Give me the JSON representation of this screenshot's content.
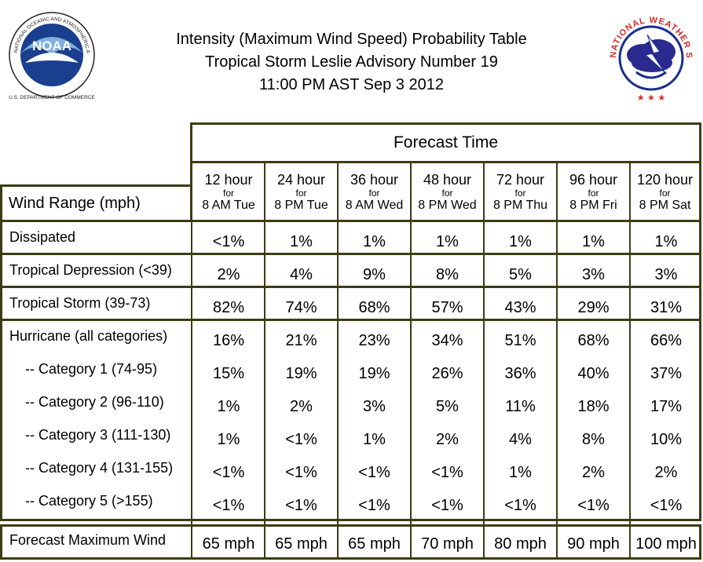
{
  "header": {
    "title_line1": "Intensity (Maximum Wind Speed) Probability Table",
    "title_line2": "Tropical Storm Leslie Advisory Number 19",
    "title_line3": "11:00 PM AST Sep 3 2012"
  },
  "logos": {
    "noaa_text": "NOAA",
    "noaa_ring_text": "NATIONAL OCEANIC AND ATMOSPHERIC ADMINISTRATION U.S. DEPARTMENT OF COMMERCE",
    "nws_ring_text": "NATIONAL WEATHER SERVICE"
  },
  "table": {
    "forecast_time_label": "Forecast Time",
    "wind_range_label": "Wind Range (mph)",
    "columns": [
      {
        "hours": "12 hour",
        "for": "for",
        "time": "8 AM Tue"
      },
      {
        "hours": "24 hour",
        "for": "for",
        "time": "8 PM Tue"
      },
      {
        "hours": "36 hour",
        "for": "for",
        "time": "8 AM Wed"
      },
      {
        "hours": "48 hour",
        "for": "for",
        "time": "8 PM Wed"
      },
      {
        "hours": "72 hour",
        "for": "for",
        "time": "8 PM Thu"
      },
      {
        "hours": "96 hour",
        "for": "for",
        "time": "8 PM Fri"
      },
      {
        "hours": "120 hour",
        "for": "for",
        "time": "8 PM Sat"
      }
    ],
    "rows": [
      {
        "label": "Dissipated",
        "values": [
          "<1%",
          "1%",
          "1%",
          "1%",
          "1%",
          "1%",
          "1%"
        ]
      },
      {
        "label": "Tropical Depression (<39)",
        "values": [
          "2%",
          "4%",
          "9%",
          "8%",
          "5%",
          "3%",
          "3%"
        ]
      },
      {
        "label": "Tropical Storm (39-73)",
        "values": [
          "82%",
          "74%",
          "68%",
          "57%",
          "43%",
          "29%",
          "31%"
        ]
      },
      {
        "label": "Hurricane (all categories)",
        "values": [
          "16%",
          "21%",
          "23%",
          "34%",
          "51%",
          "68%",
          "66%"
        ]
      },
      {
        "label": "-- Category 1 (74-95)",
        "values": [
          "15%",
          "19%",
          "19%",
          "26%",
          "36%",
          "40%",
          "37%"
        ]
      },
      {
        "label": "-- Category 2 (96-110)",
        "values": [
          "1%",
          "2%",
          "3%",
          "5%",
          "11%",
          "18%",
          "17%"
        ]
      },
      {
        "label": "-- Category 3 (111-130)",
        "values": [
          "1%",
          "<1%",
          "1%",
          "2%",
          "4%",
          "8%",
          "10%"
        ]
      },
      {
        "label": "-- Category 4 (131-155)",
        "values": [
          "<1%",
          "<1%",
          "<1%",
          "<1%",
          "1%",
          "2%",
          "2%"
        ]
      },
      {
        "label": "-- Category 5 (>155)",
        "values": [
          "<1%",
          "<1%",
          "<1%",
          "<1%",
          "<1%",
          "<1%",
          "<1%"
        ]
      },
      {
        "label": "Forecast Maximum Wind",
        "values": [
          "65 mph",
          "65 mph",
          "65 mph",
          "70 mph",
          "80 mph",
          "90 mph",
          "100 mph"
        ]
      }
    ]
  }
}
